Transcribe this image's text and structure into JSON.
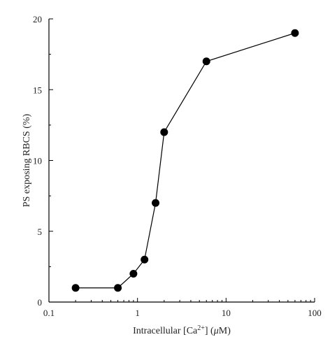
{
  "chart_data": {
    "type": "line",
    "xscale": "log",
    "xlim": [
      0.1,
      100
    ],
    "ylim": [
      0,
      20
    ],
    "xlabel_parts": {
      "prefix": "Intracellular [Ca",
      "superscript": "2+",
      "suffix": "] (",
      "mu": "μ",
      "unit": "M)"
    },
    "ylabel": "PS exposing RBCS (%)",
    "x_ticks": [
      0.1,
      1,
      10,
      100
    ],
    "x_tick_labels": [
      "0.1",
      "1",
      "10",
      "100"
    ],
    "y_ticks": [
      0,
      5,
      10,
      15,
      20
    ],
    "y_tick_labels": [
      "0",
      "5",
      "10",
      "15",
      "20"
    ],
    "grid": false,
    "series": [
      {
        "x": [
          0.2,
          0.6,
          0.9,
          1.2,
          1.6,
          2.0,
          6.0,
          60.0
        ],
        "y": [
          1,
          1,
          2,
          3,
          7,
          12,
          17,
          19
        ]
      }
    ]
  }
}
